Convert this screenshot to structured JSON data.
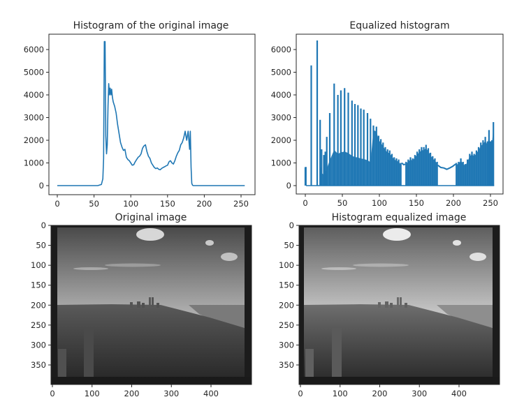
{
  "figure": {
    "background": "#ffffff",
    "line_color": "#1f77b4",
    "frame_color": "#262626"
  },
  "panels": [
    {
      "id": "original-histogram",
      "title": "Histogram of the original image",
      "xticks": [
        "0",
        "50",
        "100",
        "150",
        "200",
        "250"
      ],
      "yticks": [
        "0",
        "1000",
        "2000",
        "3000",
        "4000",
        "5000",
        "6000"
      ]
    },
    {
      "id": "equalized-histogram",
      "title": "Equalized histogram",
      "xticks": [
        "0",
        "50",
        "100",
        "150",
        "200",
        "250"
      ],
      "yticks": [
        "0",
        "1000",
        "2000",
        "3000",
        "4000",
        "5000",
        "6000"
      ]
    },
    {
      "id": "original-image",
      "title": "Original image",
      "xticks": [
        "0",
        "100",
        "200",
        "300",
        "400"
      ],
      "yticks": [
        "0",
        "50",
        "100",
        "150",
        "200",
        "250",
        "300",
        "350"
      ]
    },
    {
      "id": "equalized-image",
      "title": "Histogram equalized image",
      "xticks": [
        "0",
        "100",
        "200",
        "300",
        "400"
      ],
      "yticks": [
        "0",
        "50",
        "100",
        "150",
        "200",
        "250",
        "300",
        "350"
      ]
    }
  ],
  "chart_data": [
    {
      "type": "line",
      "title": "Histogram of the original image",
      "xlabel": "",
      "ylabel": "",
      "xlim": [
        -12,
        268
      ],
      "ylim": [
        -300,
        6700
      ],
      "grid": false,
      "x": [
        0,
        55,
        60,
        62,
        63,
        64,
        65,
        66,
        67,
        68,
        69,
        70,
        71,
        72,
        73,
        74,
        75,
        76,
        77,
        78,
        80,
        82,
        84,
        86,
        88,
        90,
        92,
        94,
        96,
        98,
        100,
        102,
        104,
        106,
        108,
        110,
        112,
        114,
        116,
        118,
        120,
        122,
        124,
        125,
        126,
        128,
        130,
        132,
        134,
        136,
        138,
        140,
        142,
        144,
        146,
        148,
        150,
        152,
        154,
        156,
        158,
        160,
        162,
        164,
        166,
        168,
        170,
        172,
        174,
        176,
        178,
        180,
        181,
        182,
        183,
        184,
        185,
        186,
        187,
        188,
        190,
        195,
        200,
        255
      ],
      "values": [
        0,
        0,
        50,
        300,
        1200,
        6350,
        6350,
        2200,
        1400,
        1800,
        3500,
        4500,
        4000,
        4300,
        4000,
        4250,
        3900,
        3700,
        3600,
        3500,
        3200,
        2700,
        2300,
        1900,
        1700,
        1550,
        1600,
        1250,
        1150,
        1100,
        1000,
        900,
        920,
        1050,
        1150,
        1250,
        1300,
        1400,
        1650,
        1750,
        1800,
        1500,
        1300,
        1250,
        1200,
        1000,
        900,
        800,
        750,
        780,
        720,
        700,
        760,
        800,
        830,
        870,
        900,
        1050,
        1100,
        1000,
        950,
        1100,
        1300,
        1450,
        1550,
        1800,
        1900,
        2100,
        2400,
        2000,
        2400,
        1600,
        2400,
        800,
        100,
        20,
        0,
        0,
        0,
        0,
        0,
        0,
        0,
        0
      ]
    },
    {
      "type": "line",
      "title": "Equalized histogram",
      "xlabel": "",
      "ylabel": "",
      "xlim": [
        -12,
        268
      ],
      "ylim": [
        -300,
        6700
      ],
      "grid": false,
      "spikes": [
        [
          0,
          800
        ],
        [
          8,
          5300
        ],
        [
          16,
          6400
        ],
        [
          20,
          2900
        ],
        [
          22,
          1600
        ],
        [
          25,
          1350
        ],
        [
          27,
          1500
        ],
        [
          29,
          2150
        ],
        [
          33,
          3200
        ],
        [
          39,
          4500
        ],
        [
          44,
          4000
        ],
        [
          48,
          4200
        ],
        [
          53,
          4300
        ],
        [
          58,
          4100
        ],
        [
          63,
          3750
        ],
        [
          67,
          3600
        ],
        [
          71,
          3550
        ],
        [
          75,
          3400
        ],
        [
          79,
          3350
        ],
        [
          84,
          3200
        ],
        [
          88,
          2950
        ],
        [
          92,
          2650
        ],
        [
          96,
          2600
        ],
        [
          99,
          2200
        ],
        [
          102,
          2050
        ],
        [
          105,
          1900
        ],
        [
          108,
          1700
        ],
        [
          111,
          1600
        ],
        [
          114,
          1550
        ],
        [
          117,
          1400
        ],
        [
          120,
          1250
        ],
        [
          123,
          1200
        ],
        [
          126,
          1150
        ],
        [
          129,
          1000
        ],
        [
          136,
          1050
        ],
        [
          139,
          1150
        ],
        [
          142,
          1250
        ],
        [
          145,
          1200
        ],
        [
          148,
          1350
        ],
        [
          151,
          1500
        ],
        [
          154,
          1600
        ],
        [
          157,
          1700
        ],
        [
          160,
          1700
        ],
        [
          163,
          1800
        ],
        [
          166,
          1650
        ],
        [
          169,
          1450
        ],
        [
          172,
          1300
        ],
        [
          175,
          1200
        ],
        [
          178,
          1050
        ],
        [
          204,
          1000
        ],
        [
          207,
          1050
        ],
        [
          210,
          1200
        ],
        [
          213,
          1050
        ],
        [
          216,
          950
        ],
        [
          219,
          1150
        ],
        [
          222,
          1400
        ],
        [
          225,
          1500
        ],
        [
          228,
          1400
        ],
        [
          231,
          1550
        ],
        [
          234,
          1700
        ],
        [
          237,
          1900
        ],
        [
          240,
          2000
        ],
        [
          243,
          2150
        ],
        [
          246,
          1950
        ],
        [
          248,
          2450
        ],
        [
          250,
          1950
        ],
        [
          252,
          2000
        ],
        [
          254,
          2800
        ]
      ],
      "baseline_segments": [
        [
          [
            130,
            1000
          ],
          [
            133,
            920
          ],
          [
            135,
            950
          ]
        ],
        [
          [
            179,
            900
          ],
          [
            183,
            800
          ],
          [
            187,
            780
          ],
          [
            191,
            720
          ],
          [
            195,
            780
          ],
          [
            199,
            850
          ],
          [
            203,
            950
          ]
        ]
      ]
    },
    {
      "type": "image",
      "title": "Original image",
      "xlim": [
        0,
        500
      ],
      "ylim": [
        400,
        0
      ],
      "xticks": [
        0,
        100,
        200,
        300,
        400
      ],
      "yticks": [
        0,
        50,
        100,
        150,
        200,
        250,
        300,
        350
      ],
      "description": "Grayscale photo of a city skyline with twin towers, sky with clouds, dark border frame"
    },
    {
      "type": "image",
      "title": "Histogram equalized image",
      "xlim": [
        0,
        500
      ],
      "ylim": [
        400,
        0
      ],
      "xticks": [
        0,
        100,
        200,
        300,
        400
      ],
      "yticks": [
        0,
        50,
        100,
        150,
        200,
        250,
        300,
        350
      ],
      "description": "Contrast-enhanced version of the same grayscale city skyline photo"
    }
  ]
}
